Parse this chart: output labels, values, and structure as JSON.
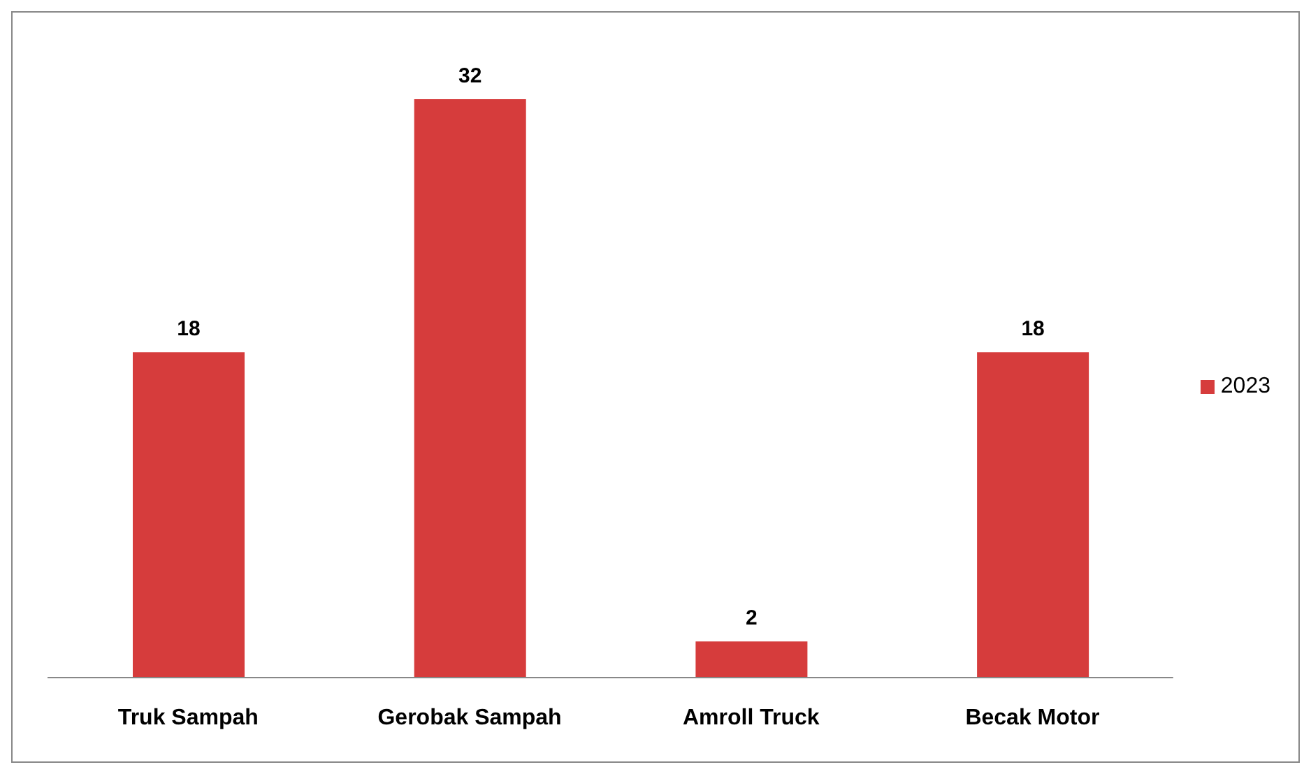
{
  "chart_data": {
    "type": "bar",
    "categories": [
      "Truk Sampah",
      "Gerobak Sampah",
      "Amroll Truck",
      "Becak Motor"
    ],
    "series": [
      {
        "name": "2023",
        "color": "#d63c3c",
        "values": [
          18,
          32,
          2,
          18
        ]
      }
    ],
    "data_labels": true,
    "legend": "right",
    "grid": false
  }
}
